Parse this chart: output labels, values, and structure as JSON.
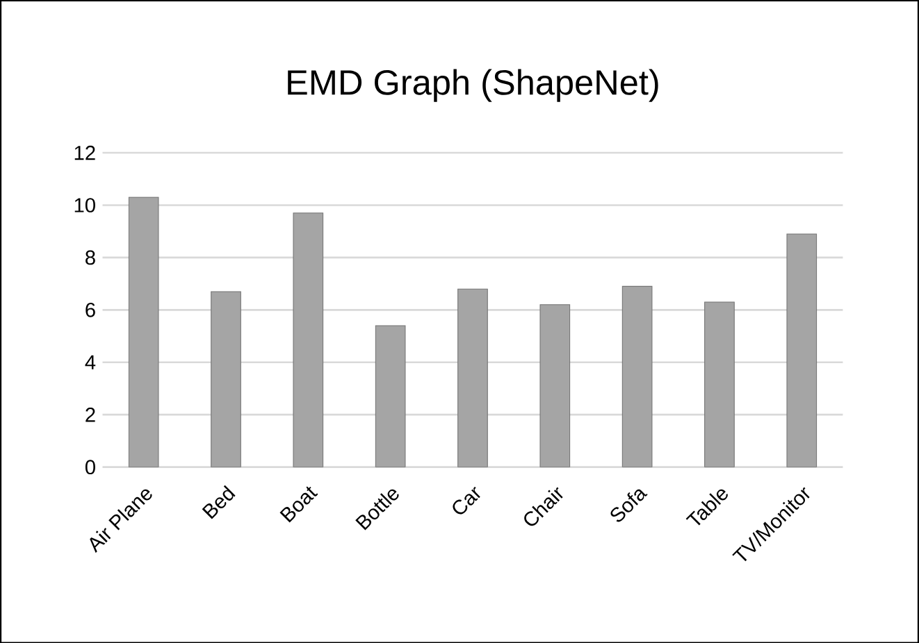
{
  "chart_data": {
    "type": "bar",
    "title": "EMD Graph (ShapeNet)",
    "categories": [
      "Air Plane",
      "Bed",
      "Boat",
      "Bottle",
      "Car",
      "Chair",
      "Sofa",
      "Table",
      "TV/Monitor"
    ],
    "values": [
      10.3,
      6.7,
      9.7,
      5.4,
      6.8,
      6.2,
      6.9,
      6.3,
      8.9
    ],
    "color": "#a5a5a5",
    "ylim": [
      0,
      12
    ],
    "yticks": [
      0,
      2,
      4,
      6,
      8,
      10,
      12
    ],
    "grid": "y"
  }
}
